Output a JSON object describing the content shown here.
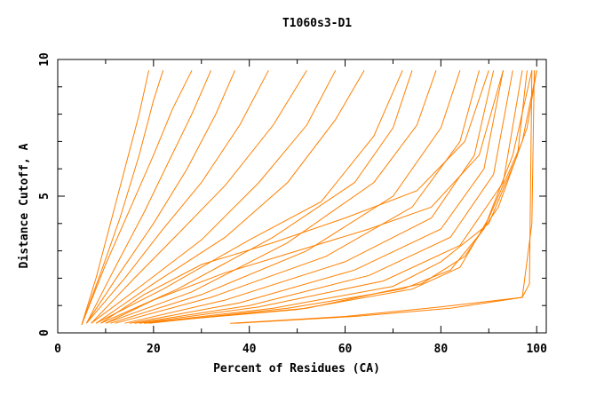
{
  "chart_data": {
    "type": "line",
    "title": "T1060s3-D1",
    "xlabel": "Percent of Residues (CA)",
    "ylabel": "Distance Cutoff, A",
    "xlim": [
      0,
      102
    ],
    "ylim": [
      0,
      10
    ],
    "xticks": [
      "0",
      "20",
      "40",
      "60",
      "80",
      "100"
    ],
    "yticks": [
      "0",
      "5",
      "10"
    ],
    "grid": false,
    "line_color": "#ff8000",
    "series": [
      {
        "points": [
          [
            5,
            0.3
          ],
          [
            8,
            2
          ],
          [
            11,
            4
          ],
          [
            14,
            6
          ],
          [
            17,
            8
          ],
          [
            19,
            9.6
          ]
        ]
      },
      {
        "points": [
          [
            5,
            0.3
          ],
          [
            9,
            2.2
          ],
          [
            13,
            4.2
          ],
          [
            17,
            6.5
          ],
          [
            20,
            8.5
          ],
          [
            22,
            9.6
          ]
        ]
      },
      {
        "points": [
          [
            5,
            0.3
          ],
          [
            10,
            2.5
          ],
          [
            15,
            4.5
          ],
          [
            20,
            6.5
          ],
          [
            24,
            8.2
          ],
          [
            28,
            9.6
          ]
        ]
      },
      {
        "points": [
          [
            6,
            0.35
          ],
          [
            12,
            2.4
          ],
          [
            18,
            4.4
          ],
          [
            23,
            6.2
          ],
          [
            28,
            8
          ],
          [
            32,
            9.6
          ]
        ]
      },
      {
        "points": [
          [
            6,
            0.35
          ],
          [
            13,
            2.2
          ],
          [
            20,
            4
          ],
          [
            27,
            6
          ],
          [
            33,
            8
          ],
          [
            37,
            9.6
          ]
        ]
      },
      {
        "points": [
          [
            6,
            0.35
          ],
          [
            14,
            2
          ],
          [
            22,
            3.8
          ],
          [
            30,
            5.5
          ],
          [
            38,
            7.6
          ],
          [
            44,
            9.6
          ]
        ]
      },
      {
        "points": [
          [
            7,
            0.35
          ],
          [
            16,
            2
          ],
          [
            25,
            3.6
          ],
          [
            35,
            5.4
          ],
          [
            45,
            7.6
          ],
          [
            52,
            9.6
          ]
        ]
      },
      {
        "points": [
          [
            7,
            0.35
          ],
          [
            18,
            1.8
          ],
          [
            30,
            3.4
          ],
          [
            42,
            5.5
          ],
          [
            52,
            7.6
          ],
          [
            58,
            9.6
          ]
        ]
      },
      {
        "points": [
          [
            8,
            0.35
          ],
          [
            20,
            1.8
          ],
          [
            35,
            3.5
          ],
          [
            48,
            5.5
          ],
          [
            58,
            7.8
          ],
          [
            64,
            9.6
          ]
        ]
      },
      {
        "points": [
          [
            8,
            0.35
          ],
          [
            22,
            1.6
          ],
          [
            40,
            3.4
          ],
          [
            55,
            4.8
          ],
          [
            66,
            7.2
          ],
          [
            72,
            9.6
          ]
        ]
      },
      {
        "points": [
          [
            9,
            0.35
          ],
          [
            25,
            1.6
          ],
          [
            45,
            3.5
          ],
          [
            62,
            5.5
          ],
          [
            70,
            7.5
          ],
          [
            74,
            9.6
          ]
        ]
      },
      {
        "points": [
          [
            10,
            0.35
          ],
          [
            28,
            1.5
          ],
          [
            48,
            3.3
          ],
          [
            66,
            5.5
          ],
          [
            75,
            7.6
          ],
          [
            79,
            9.6
          ]
        ]
      },
      {
        "points": [
          [
            11,
            0.35
          ],
          [
            30,
            1.4
          ],
          [
            52,
            3
          ],
          [
            70,
            5
          ],
          [
            80,
            7.5
          ],
          [
            84,
            9.6
          ]
        ]
      },
      {
        "points": [
          [
            12,
            0.35
          ],
          [
            32,
            1.3
          ],
          [
            56,
            2.8
          ],
          [
            74,
            4.6
          ],
          [
            84,
            7
          ],
          [
            88,
            9.6
          ]
        ]
      },
      {
        "points": [
          [
            14,
            0.35
          ],
          [
            35,
            1.2
          ],
          [
            60,
            2.6
          ],
          [
            78,
            4.2
          ],
          [
            87,
            6.5
          ],
          [
            91,
            9.6
          ]
        ]
      },
      {
        "points": [
          [
            15,
            0.35
          ],
          [
            38,
            1.1
          ],
          [
            62,
            2.3
          ],
          [
            80,
            3.8
          ],
          [
            89,
            6
          ],
          [
            93,
            9.6
          ]
        ]
      },
      {
        "points": [
          [
            16,
            0.35
          ],
          [
            40,
            1
          ],
          [
            65,
            2.1
          ],
          [
            82,
            3.5
          ],
          [
            91,
            5.8
          ],
          [
            95,
            9.6
          ]
        ]
      },
      {
        "points": [
          [
            17,
            0.35
          ],
          [
            42,
            0.95
          ],
          [
            68,
            1.9
          ],
          [
            84,
            3.2
          ],
          [
            93,
            5.5
          ],
          [
            97,
            9.6
          ]
        ]
      },
      {
        "points": [
          [
            18,
            0.35
          ],
          [
            45,
            0.9
          ],
          [
            70,
            1.7
          ],
          [
            80,
            2.6
          ],
          [
            90,
            4
          ],
          [
            96,
            6.5
          ],
          [
            98,
            9.6
          ]
        ]
      },
      {
        "points": [
          [
            19,
            0.35
          ],
          [
            48,
            0.9
          ],
          [
            72,
            1.6
          ],
          [
            82,
            2.3
          ],
          [
            89,
            3.8
          ],
          [
            95,
            6.5
          ],
          [
            99,
            9.6
          ]
        ]
      },
      {
        "points": [
          [
            20,
            0.4
          ],
          [
            50,
            0.85
          ],
          [
            74,
            1.6
          ],
          [
            84,
            2.4
          ],
          [
            90,
            4.2
          ],
          [
            97,
            7
          ],
          [
            100,
            9.6
          ]
        ]
      },
      {
        "points": [
          [
            20,
            0.4
          ],
          [
            52,
            0.9
          ],
          [
            76,
            1.8
          ],
          [
            85,
            2.8
          ],
          [
            92,
            4.6
          ],
          [
            98,
            7.5
          ],
          [
            100,
            9.6
          ]
        ]
      },
      {
        "points": [
          [
            10,
            0.35
          ],
          [
            20,
            1.2
          ],
          [
            35,
            2.2
          ],
          [
            50,
            3
          ],
          [
            65,
            3.8
          ],
          [
            78,
            4.6
          ],
          [
            88,
            6.5
          ],
          [
            93,
            9.6
          ]
        ]
      },
      {
        "points": [
          [
            9,
            0.35
          ],
          [
            18,
            1.4
          ],
          [
            30,
            2.5
          ],
          [
            45,
            3.3
          ],
          [
            60,
            4.2
          ],
          [
            75,
            5.2
          ],
          [
            85,
            7
          ],
          [
            90,
            9.6
          ]
        ]
      },
      {
        "points": [
          [
            36,
            0.35
          ],
          [
            60,
            0.6
          ],
          [
            80,
            0.95
          ],
          [
            97,
            1.3
          ],
          [
            98.5,
            1.8
          ],
          [
            99,
            9.6
          ]
        ]
      },
      {
        "points": [
          [
            37,
            0.35
          ],
          [
            62,
            0.6
          ],
          [
            82,
            0.9
          ],
          [
            97,
            1.3
          ],
          [
            99,
            4
          ],
          [
            99.5,
            9.6
          ]
        ]
      }
    ]
  }
}
